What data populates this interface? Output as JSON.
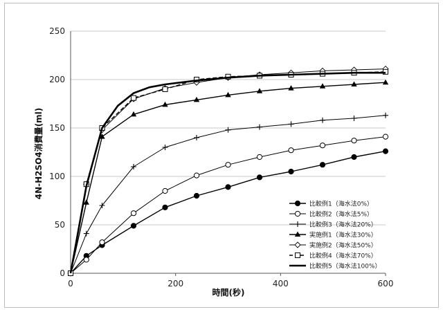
{
  "chart_data": {
    "type": "line",
    "xlabel": "時間(秒)",
    "ylabel": "4N-H2SO4消費量(ml)",
    "xlim": [
      0,
      600
    ],
    "ylim": [
      0,
      250
    ],
    "xticks": [
      0,
      200,
      400,
      600
    ],
    "yticks": [
      0,
      50,
      100,
      150,
      200,
      250
    ],
    "grid": "horizontal",
    "legend_position": "bottom-right",
    "series": [
      {
        "name": "比較例1（海水法0%）",
        "marker": "filled-circle",
        "style": "solid",
        "width": 1.4,
        "x": [
          0,
          30,
          60,
          120,
          180,
          240,
          300,
          360,
          420,
          480,
          540,
          600
        ],
        "y": [
          0,
          18,
          29,
          49,
          68,
          80,
          89,
          99,
          105,
          112,
          120,
          126
        ]
      },
      {
        "name": "比較例2（海水法5%）",
        "marker": "open-circle",
        "style": "solid",
        "width": 1.0,
        "x": [
          0,
          30,
          60,
          120,
          180,
          240,
          300,
          360,
          420,
          480,
          540,
          600
        ],
        "y": [
          0,
          14,
          32,
          62,
          85,
          101,
          112,
          120,
          127,
          132,
          137,
          141
        ]
      },
      {
        "name": "比較例3（海水法20%）",
        "marker": "plus",
        "style": "solid",
        "width": 1.0,
        "x": [
          0,
          30,
          60,
          120,
          180,
          240,
          300,
          360,
          420,
          480,
          540,
          600
        ],
        "y": [
          0,
          41,
          70,
          110,
          130,
          140,
          148,
          151,
          154,
          158,
          160,
          163
        ]
      },
      {
        "name": "実施例1（海水法30%）",
        "marker": "filled-triangle",
        "style": "solid",
        "width": 1.4,
        "x": [
          0,
          30,
          60,
          120,
          180,
          240,
          300,
          360,
          420,
          480,
          540,
          600
        ],
        "y": [
          0,
          73,
          141,
          164,
          174,
          179,
          184,
          188,
          191,
          193,
          195,
          197
        ]
      },
      {
        "name": "実施例2（海水法50%）",
        "marker": "open-diamond",
        "style": "solid",
        "width": 1.0,
        "x": [
          0,
          30,
          60,
          120,
          180,
          240,
          300,
          360,
          420,
          480,
          540,
          600
        ],
        "y": [
          0,
          92,
          148,
          180,
          191,
          197,
          202,
          205,
          207,
          209,
          210,
          211
        ]
      },
      {
        "name": "比較例4（海水法70%）",
        "marker": "open-square",
        "style": "dashed",
        "width": 1.4,
        "x": [
          0,
          30,
          60,
          120,
          180,
          240,
          300,
          360,
          420,
          480,
          540,
          600
        ],
        "y": [
          0,
          92,
          150,
          181,
          190,
          200,
          203,
          204,
          205,
          206,
          207,
          208
        ]
      },
      {
        "name": "比較例5（海水法100%）",
        "marker": "none",
        "style": "solid",
        "width": 2.6,
        "x": [
          0,
          30,
          60,
          90,
          120,
          150,
          180,
          240,
          300,
          360,
          420,
          480,
          540,
          600
        ],
        "y": [
          0,
          90,
          150,
          173,
          186,
          192,
          195,
          199,
          202,
          204,
          205,
          206,
          207,
          207
        ]
      }
    ]
  }
}
